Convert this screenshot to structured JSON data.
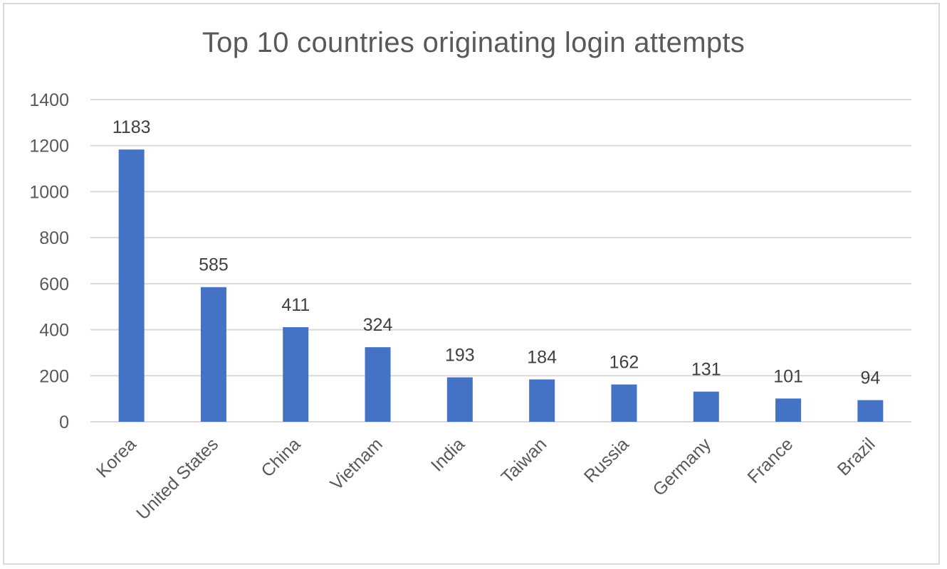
{
  "chart_data": {
    "type": "bar",
    "title": "Top 10 countries originating login attempts",
    "xlabel": "",
    "ylabel": "",
    "categories": [
      "Korea",
      "United States",
      "China",
      "Vietnam",
      "India",
      "Taiwan",
      "Russia",
      "Germany",
      "France",
      "Brazil"
    ],
    "values": [
      1183,
      585,
      411,
      324,
      193,
      184,
      162,
      131,
      101,
      94
    ],
    "data_labels": [
      "1183",
      "585",
      "411",
      "324",
      "193",
      "184",
      "162",
      "131",
      "101",
      "94"
    ],
    "ylim": [
      0,
      1400
    ],
    "yticks": [
      "0",
      "200",
      "400",
      "600",
      "800",
      "1000",
      "1200",
      "1400"
    ],
    "grid": true,
    "legend": "none",
    "colors": {
      "bar": "#4472c4",
      "grid": "#d9d9d9",
      "axis": "#d9d9d9",
      "text": "#595959"
    }
  }
}
